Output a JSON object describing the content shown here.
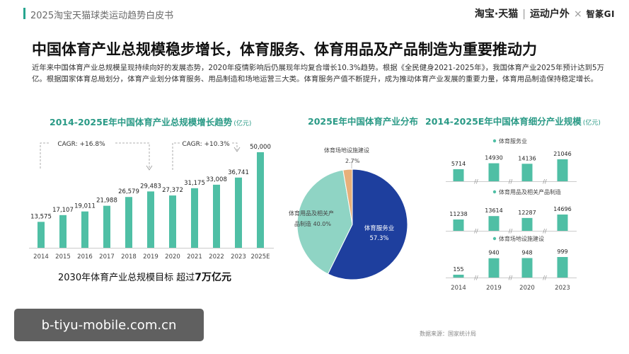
{
  "header": {
    "report_title": "2025淘宝天猫球类运动趋势白皮书",
    "brand_taobao": "淘宝·天猫",
    "brand_outdoor": "运动户外",
    "brand_sep": "×",
    "brand_gi": "智篆GI"
  },
  "headline": "中国体育产业总规模稳步增长，体育服务、体育用品及产品制造为重要推动力",
  "intro": "近年来中国体育产业总规模呈现持续向好的发展态势，2020年疫情影响后仍展现年均复合增长10.3%趋势。根据《全民健身2021-2025年》，我国体育产业2025年预计达到5万亿。根据国家体育总局划分，体育产业划分体育服务、用品制造和场地运营三大类。体育服务产值不断提升，成为推动体育产业发展的重要力量，体育用品制造保持稳定增长。",
  "panels": {
    "left_title": "2014-2025E年中国体育产业总规模增长趋势",
    "left_unit": "(亿元)",
    "middle_title": "2025E年中国体育产业分布",
    "right_title": "2014-2025E年中国体育细分产业规模",
    "right_unit": "(亿元)"
  },
  "target": {
    "text": "2030年体育产业总规模目标 超过",
    "value": "7万亿元"
  },
  "source": "数据来源：国家统计局",
  "watermark": "b-tiyu-mobile.com.cn",
  "colors": {
    "accent": "#27a58f",
    "bar": "#4fbfa5",
    "pie_service": "#1e3f9e",
    "pie_goods": "#8fd4c4",
    "pie_venue": "#e8b07a"
  },
  "chart_data": [
    {
      "type": "bar",
      "title": "2014-2025E年中国体育产业总规模增长趋势",
      "unit": "(亿元)",
      "categories": [
        "2014",
        "2015",
        "2016",
        "2017",
        "2018",
        "2019",
        "2020",
        "2021",
        "2022",
        "2023",
        "2025E"
      ],
      "values": [
        13575,
        17107,
        19011,
        21988,
        26579,
        29483,
        27372,
        31175,
        33008,
        36741,
        50000
      ],
      "value_labels": [
        "13,575",
        "17,107",
        "19,011",
        "21,988",
        "26,579",
        "29,483",
        "27,372",
        "31,175",
        "33,008",
        "36,741",
        "50,000"
      ],
      "annotations": [
        "CAGR: +16.8%",
        "CAGR: +10.3%"
      ],
      "grid": false
    },
    {
      "type": "pie",
      "title": "2025E年中国体育产业分布",
      "labels": [
        "体育服务业",
        "体育用品及相关产品制造",
        "体育场地设施建设"
      ],
      "values": [
        57.3,
        40.0,
        2.7
      ],
      "value_labels": [
        "57.3%",
        "40.0%",
        "2.7%"
      ]
    },
    {
      "type": "bar",
      "title": "2014-2025E年中国体育细分产业规模",
      "unit": "(亿元)",
      "categories": [
        "2014",
        "2019",
        "2020",
        "2023"
      ],
      "series": [
        {
          "name": "体育服务业",
          "values": [
            5714,
            14930,
            14136,
            21046
          ]
        },
        {
          "name": "体育用品及相关产品制造",
          "values": [
            11238,
            13614,
            12287,
            14696
          ]
        },
        {
          "name": "体育场地设施建设",
          "values": [
            155,
            940,
            948,
            999
          ]
        }
      ],
      "axis_break_marker": "//"
    }
  ]
}
